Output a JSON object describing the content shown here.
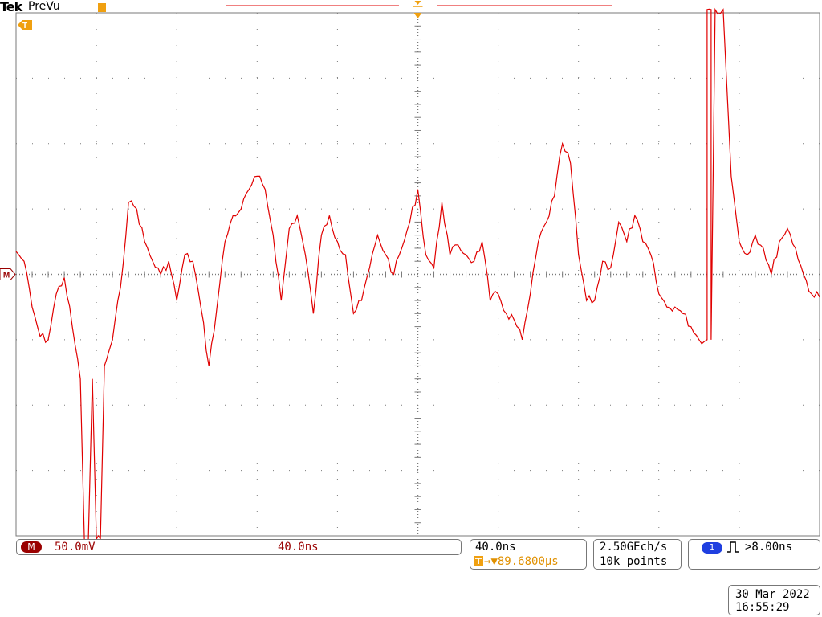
{
  "header": {
    "brand": "Tek",
    "mode": "PreVu"
  },
  "markers": {
    "trigger_letter": "T",
    "ground_label": "M"
  },
  "colors": {
    "trace": "#e00000",
    "grid": "#7a7a7a",
    "accent_orange": "#f0a010",
    "channel_badge": "#9a0000",
    "trigger_badge": "#1f3fe0"
  },
  "channel": {
    "name": "M",
    "scale": "50.0mV",
    "timebase": "40.0ns"
  },
  "timebase": {
    "scale": "40.0ns",
    "position": "89.6800µs"
  },
  "acquisition": {
    "rate": "2.50GEch/s",
    "points": "10k points"
  },
  "trigger": {
    "source": "1",
    "condition": ">8.00ns",
    "icon": "pulse-width-icon"
  },
  "datetime": {
    "date": "30 Mar  2022",
    "time": "16:55:29"
  },
  "chart_data": {
    "type": "line",
    "title": "",
    "xlabel": "",
    "ylabel": "",
    "x_divisions": 10,
    "y_divisions": 8,
    "xlim": [
      -5,
      5
    ],
    "ylim": [
      -4,
      4
    ],
    "grid": true,
    "series": [
      {
        "x": [
          -5,
          -4.9,
          -4.8,
          -4.7,
          -4.6,
          -4.5,
          -4.4,
          -4.3,
          -4.2,
          -4.15,
          -4.1,
          -4.05,
          -4,
          -3.95,
          -3.9,
          -3.85,
          -3.8,
          -3.7,
          -3.6,
          -3.5,
          -3.4,
          -3.3,
          -3.2,
          -3.1,
          -3,
          -2.9,
          -2.8,
          -2.7,
          -2.6,
          -2.5,
          -2.4,
          -2.3,
          -2.2,
          -2.1,
          -2,
          -1.9,
          -1.8,
          -1.7,
          -1.6,
          -1.5,
          -1.4,
          -1.3,
          -1.2,
          -1.1,
          -1,
          -0.9,
          -0.8,
          -0.7,
          -0.6,
          -0.5,
          -0.4,
          -0.3,
          -0.2,
          -0.1,
          0,
          0.1,
          0.2,
          0.3,
          0.4,
          0.5,
          0.6,
          0.7,
          0.8,
          0.9,
          1,
          1.1,
          1.2,
          1.3,
          1.4,
          1.5,
          1.6,
          1.7,
          1.8,
          1.9,
          2,
          2.1,
          2.2,
          2.3,
          2.4,
          2.5,
          2.6,
          2.7,
          2.8,
          2.9,
          3,
          3.1,
          3.2,
          3.3,
          3.4,
          3.5,
          3.6,
          3.6,
          3.65,
          3.65,
          3.7,
          3.8,
          3.9,
          4,
          4.1,
          4.2,
          4.3,
          4.4,
          4.5,
          4.6,
          4.7,
          4.8,
          4.9,
          5
        ],
        "y": [
          0.35,
          0.2,
          -0.5,
          -0.95,
          -1.0,
          -0.3,
          -0.05,
          -0.8,
          -1.6,
          -4.05,
          -4.05,
          -1.6,
          -4.05,
          -4.05,
          -1.4,
          -1.2,
          -1.0,
          -0.2,
          1.1,
          1.0,
          0.5,
          0.2,
          0.0,
          0.2,
          -0.4,
          0.3,
          0.2,
          -0.5,
          -1.4,
          -0.5,
          0.5,
          0.9,
          1.0,
          1.3,
          1.5,
          1.3,
          0.6,
          -0.4,
          0.7,
          0.9,
          0.3,
          -0.6,
          0.6,
          0.9,
          0.5,
          0.3,
          -0.6,
          -0.4,
          0.1,
          0.6,
          0.3,
          0.0,
          0.4,
          0.8,
          1.3,
          0.3,
          0.1,
          1.1,
          0.3,
          0.45,
          0.3,
          0.2,
          0.5,
          -0.4,
          -0.3,
          -0.6,
          -0.7,
          -1.0,
          -0.3,
          0.5,
          0.8,
          1.2,
          2.0,
          1.7,
          0.3,
          -0.4,
          -0.4,
          0.2,
          0.1,
          0.8,
          0.5,
          0.9,
          0.5,
          0.3,
          -0.3,
          -0.5,
          -0.5,
          -0.6,
          -0.8,
          -1.0,
          -1.0,
          4.05,
          4.05,
          -1.0,
          4.05,
          4.05,
          1.5,
          0.5,
          0.3,
          0.6,
          0.4,
          0.0,
          0.5,
          0.7,
          0.4,
          0.0,
          -0.3,
          -0.35
        ]
      }
    ]
  }
}
